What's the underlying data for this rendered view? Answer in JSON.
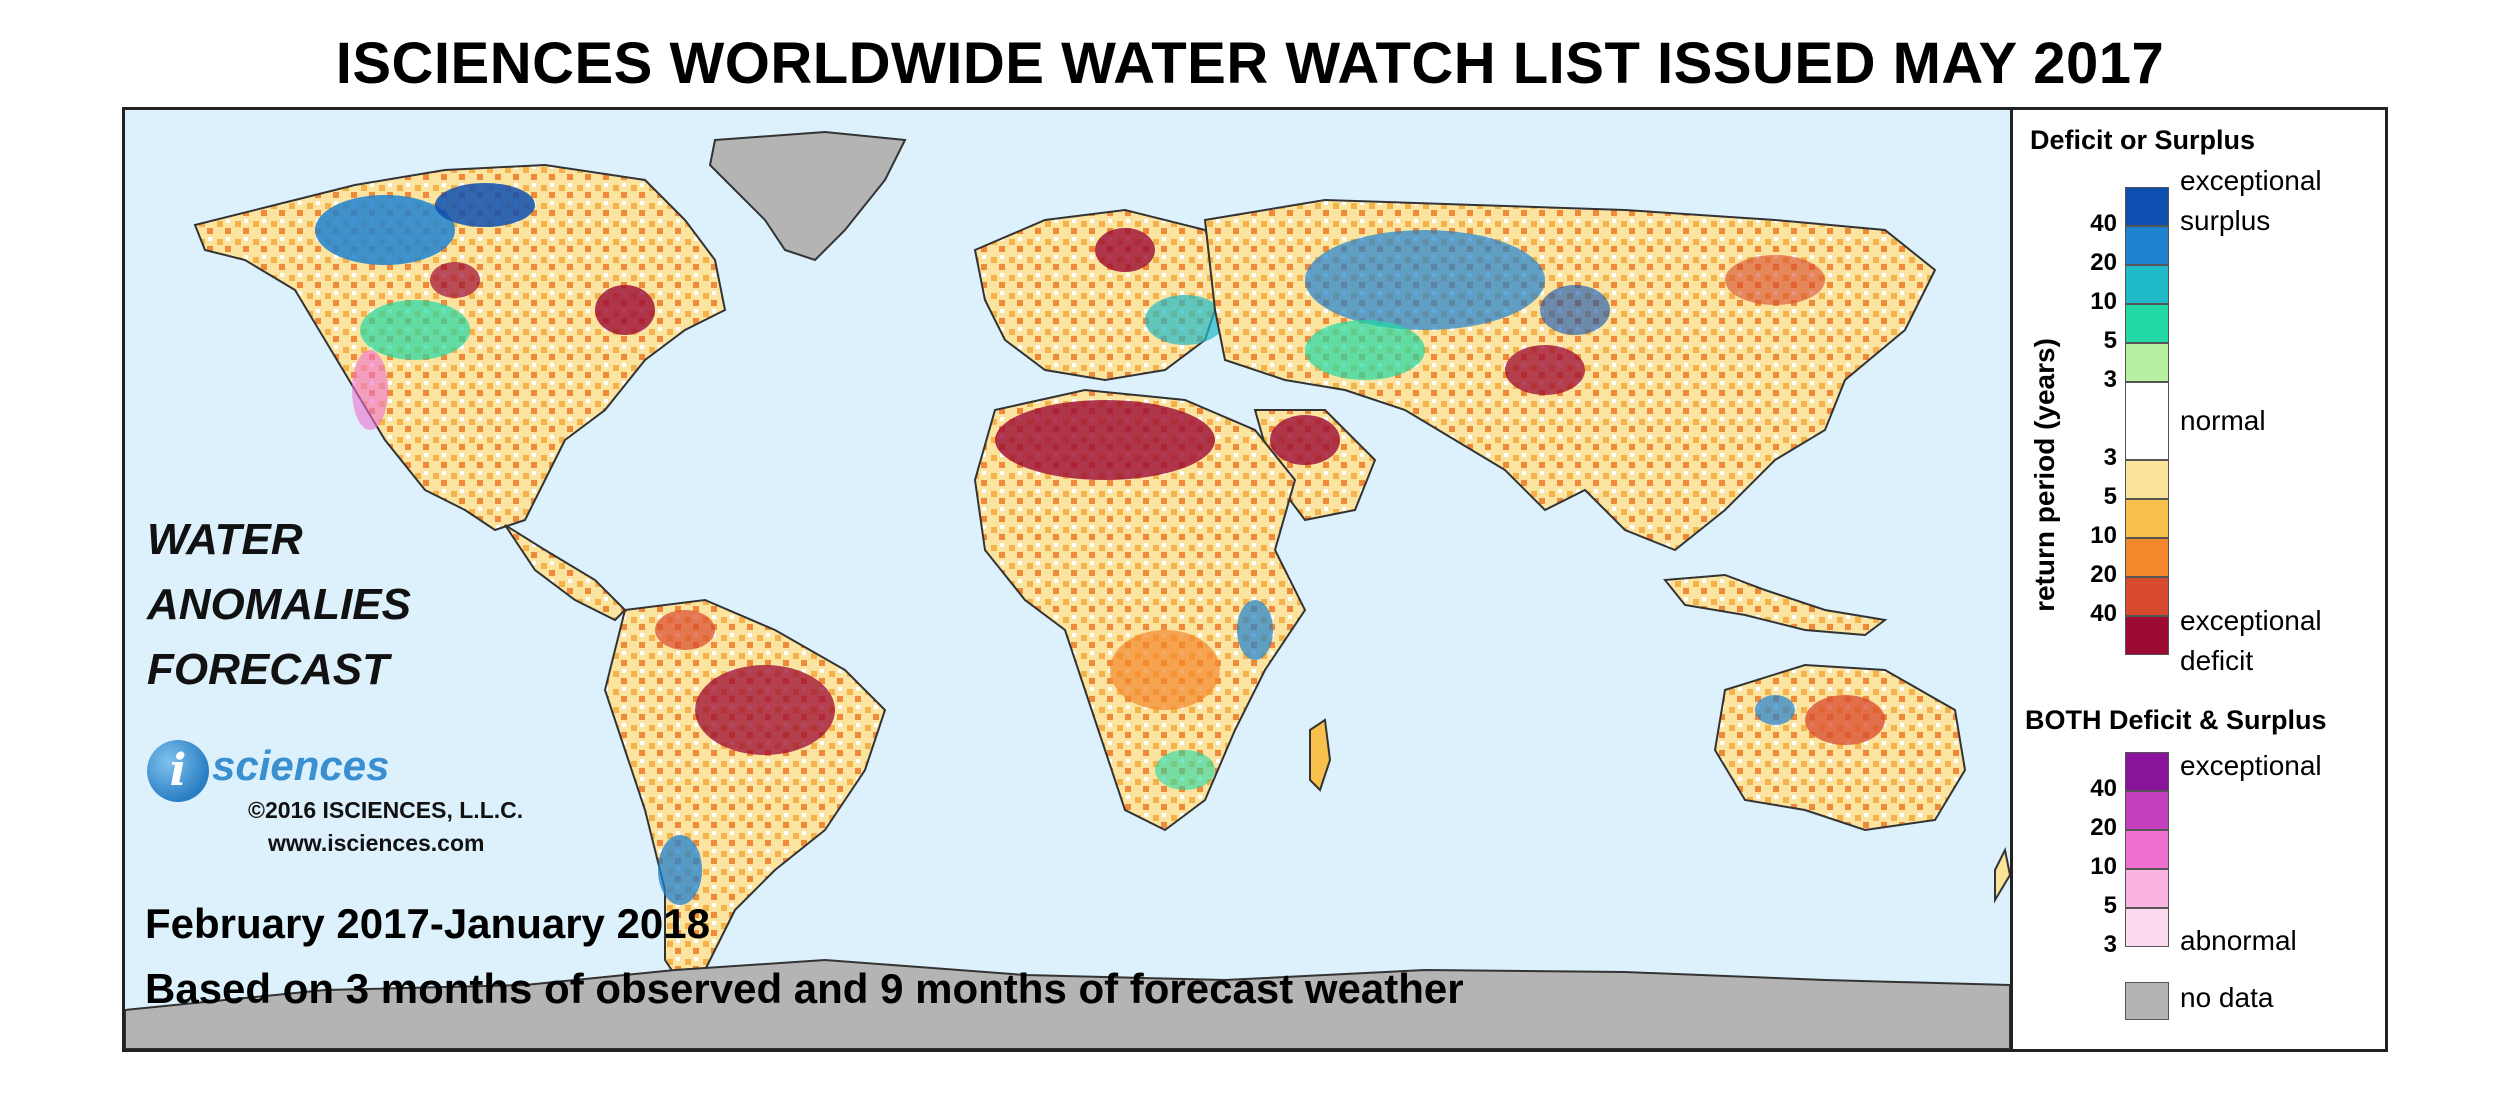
{
  "title": "ISCIENCES WORLDWIDE WATER WATCH LIST ISSUED MAY 2017",
  "map_caption": {
    "line1": "WATER",
    "line2": "ANOMALIES",
    "line3": "FORECAST"
  },
  "logo": {
    "icon_letter": "i",
    "wordmark": "sciences",
    "copyright": "©2016 ISCIENCES, L.L.C.",
    "website": "www.isciences.com"
  },
  "period": "February 2017-January 2018",
  "basis": "Based on 3 months of observed and 9 months of forecast weather",
  "legend": {
    "deficit_surplus_heading": "Deficit or Surplus",
    "axis_label": "return period (years)",
    "surplus_top_label_1": "exceptional",
    "surplus_top_label_2": "surplus",
    "normal_label": "normal",
    "deficit_bottom_label_1": "exceptional",
    "deficit_bottom_label_2": "deficit",
    "surplus_ticks": [
      "40",
      "20",
      "10",
      "5",
      "3"
    ],
    "deficit_ticks": [
      "3",
      "5",
      "10",
      "20",
      "40"
    ],
    "both_heading": "BOTH Deficit & Surplus",
    "both_top_label": "exceptional",
    "both_bottom_label": "abnormal",
    "both_ticks": [
      "40",
      "20",
      "10",
      "5",
      "3"
    ],
    "no_data_label": "no data",
    "colors": {
      "surplus": [
        "#0d4fb0",
        "#1f82d0",
        "#1fb9c8",
        "#22d8a4",
        "#b8f0a2"
      ],
      "normal": "#ffffff",
      "deficit": [
        "#fbe39a",
        "#f9c04c",
        "#f3872c",
        "#d84a2d",
        "#9c0a33"
      ],
      "both": [
        "#8a139c",
        "#c33fbd",
        "#ee6fcf",
        "#f9b3e2",
        "#fbd9ee"
      ],
      "no_data": "#b4b4b4",
      "ocean": "#dcf1fb"
    }
  }
}
